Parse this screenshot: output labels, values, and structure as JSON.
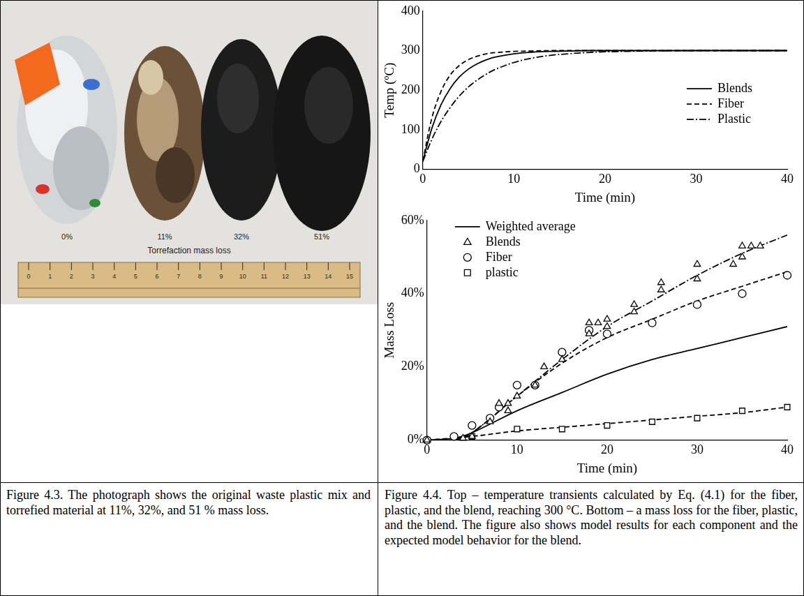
{
  "photo": {
    "labels": [
      "0%",
      "11%",
      "32%",
      "51%"
    ],
    "caption_inside": "Torrefaction mass loss",
    "ruler": [
      0,
      1,
      2,
      3,
      4,
      5,
      6,
      7,
      8,
      9,
      10,
      11,
      12,
      13,
      14,
      15
    ]
  },
  "chart_data": [
    {
      "type": "line",
      "x_label": "Time (min)",
      "y_label": "Temp (ºC)",
      "xlim": [
        0,
        40
      ],
      "xticks": [
        0,
        10,
        20,
        30,
        40
      ],
      "ylim": [
        0,
        400
      ],
      "yticks": [
        0,
        100,
        200,
        300,
        400
      ],
      "grid": false,
      "legend": "center right",
      "series": [
        {
          "name": "Blends",
          "color": "#000000",
          "line_style": "solid",
          "x": [
            0,
            1,
            2,
            3,
            4,
            5,
            6,
            7,
            8,
            10,
            12,
            14,
            16,
            18,
            20,
            25,
            30,
            35,
            40
          ],
          "values": [
            20,
            104,
            163,
            204,
            233,
            253,
            267,
            277,
            284,
            292,
            296,
            298,
            299,
            300,
            300,
            300,
            300,
            300,
            300
          ]
        },
        {
          "name": "Fiber",
          "color": "#000000",
          "line_style": "dashed",
          "x": [
            0,
            1,
            2,
            3,
            4,
            5,
            6,
            7,
            8,
            10,
            12,
            14,
            16,
            18,
            20,
            25,
            30,
            35,
            40
          ],
          "values": [
            20,
            130,
            197,
            238,
            262,
            277,
            286,
            292,
            295,
            298,
            299,
            300,
            300,
            300,
            300,
            300,
            300,
            300,
            300
          ]
        },
        {
          "name": "Plastic",
          "color": "#000000",
          "line_style": "dashdot",
          "x": [
            0,
            1,
            2,
            3,
            4,
            5,
            6,
            7,
            8,
            10,
            12,
            14,
            16,
            18,
            20,
            25,
            30,
            35,
            40
          ],
          "values": [
            20,
            76,
            121,
            156,
            185,
            208,
            226,
            241,
            253,
            270,
            281,
            288,
            292,
            295,
            297,
            299,
            300,
            300,
            300
          ]
        }
      ]
    },
    {
      "type": "scatter",
      "x_label": "Time (min)",
      "y_label": "Mass Loss",
      "xlim": [
        0,
        40
      ],
      "xticks": [
        0,
        10,
        20,
        30,
        40
      ],
      "ylim": [
        0,
        60
      ],
      "yticks": [
        {
          "value": 0,
          "label": "0%"
        },
        {
          "value": 20,
          "label": "20%"
        },
        {
          "value": 40,
          "label": "40%"
        },
        {
          "value": 60,
          "label": "60%"
        }
      ],
      "grid": false,
      "legend": "upper left",
      "series": [
        {
          "name": "Weighted average",
          "color": "#000000",
          "line_style": "solid",
          "x": [
            0,
            3,
            5,
            10,
            15,
            20,
            25,
            30,
            35,
            40
          ],
          "values": [
            0,
            0.5,
            2,
            8,
            13,
            18,
            22,
            25,
            28,
            31
          ]
        },
        {
          "name": "Blends",
          "color": "#000000",
          "marker": "triangle",
          "x": [
            0,
            4,
            5,
            7,
            8,
            9,
            9,
            10,
            12,
            13,
            15,
            18,
            18,
            19,
            20,
            20,
            23,
            23,
            26,
            26,
            30,
            30,
            34,
            35,
            35,
            36,
            37
          ],
          "values": [
            0,
            0.5,
            1,
            5,
            10,
            10,
            8,
            12,
            15,
            20,
            22,
            32,
            29,
            32,
            33,
            31,
            37,
            35,
            43,
            41,
            48,
            44,
            48,
            53,
            50,
            53,
            53
          ]
        },
        {
          "name": "Fiber",
          "color": "#000000",
          "marker": "circle",
          "x": [
            0,
            3,
            5,
            7,
            8,
            10,
            12,
            15,
            18,
            20,
            25,
            30,
            35,
            40
          ],
          "values": [
            0,
            1,
            4,
            6,
            9,
            15,
            15,
            24,
            30,
            29,
            32,
            37,
            40,
            45
          ]
        },
        {
          "name": "plastic",
          "color": "#000000",
          "marker": "square",
          "x": [
            0,
            5,
            10,
            15,
            20,
            25,
            30,
            35,
            40
          ],
          "values": [
            0,
            1,
            3,
            3,
            4,
            5,
            6,
            8,
            9
          ]
        },
        {
          "color": "#000000",
          "line_style": "dashdot",
          "x": [
            0,
            3,
            5,
            10,
            15,
            20,
            25,
            30,
            35,
            40
          ],
          "values": [
            0,
            0,
            2,
            12,
            22,
            31,
            38,
            45,
            51,
            56
          ]
        },
        {
          "color": "#000000",
          "line_style": "dashed",
          "x": [
            0,
            3,
            5,
            10,
            15,
            20,
            25,
            30,
            35,
            40
          ],
          "values": [
            0,
            0,
            2,
            12,
            21,
            28,
            33,
            38,
            42,
            46
          ]
        },
        {
          "color": "#000000",
          "line_style": "dashed",
          "x": [
            0,
            5,
            10,
            15,
            20,
            25,
            30,
            35,
            40
          ],
          "values": [
            0,
            1,
            2.5,
            3.5,
            4.5,
            5.5,
            6.5,
            7.5,
            9
          ]
        }
      ]
    }
  ],
  "captions": {
    "left": "Figure 4.3. The photograph shows the original waste plastic mix and torrefied material at 11%, 32%, and 51 % mass loss.",
    "right": "Figure 4.4. Top – temperature transients calculated by Eq. (4.1) for the fiber, plastic, and the blend, reaching 300 °C. Bottom – a mass loss for the fiber, plastic, and the blend. The figure also shows model results for each component and the expected model behavior for the blend."
  }
}
